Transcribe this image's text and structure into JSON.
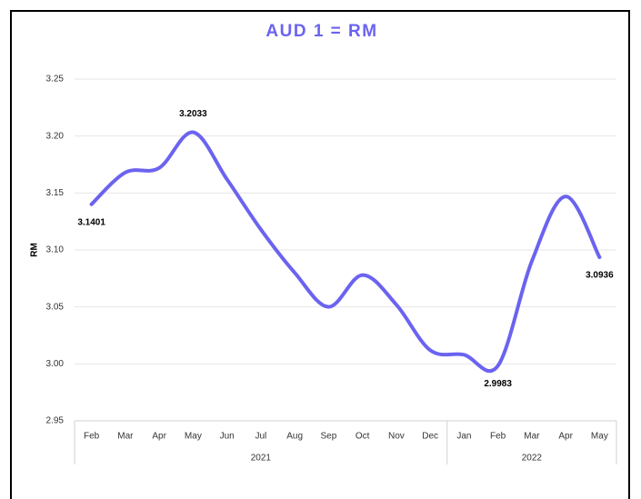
{
  "chart_data": {
    "type": "line",
    "title": "AUD 1 = RM",
    "y_label": "RM",
    "category_groups": [
      {
        "label": "2021",
        "categories": [
          "Feb",
          "Mar",
          "Apr",
          "May",
          "Jun",
          "Jul",
          "Aug",
          "Sep",
          "Oct",
          "Nov",
          "Dec"
        ]
      },
      {
        "label": "2022",
        "categories": [
          "Jan",
          "Feb",
          "Mar",
          "Apr",
          "May"
        ]
      }
    ],
    "values": [
      3.1401,
      3.168,
      3.172,
      3.2033,
      3.162,
      3.118,
      3.08,
      3.05,
      3.078,
      3.052,
      3.012,
      3.008,
      2.9983,
      3.09,
      3.147,
      3.0936
    ],
    "value_labels": [
      "3.1401",
      null,
      null,
      "3.2033",
      null,
      null,
      null,
      null,
      null,
      null,
      null,
      null,
      "2.9983",
      null,
      null,
      "3.0936"
    ],
    "color": "#6b63ef",
    "smooth": true,
    "ylim": [
      2.95,
      3.25
    ],
    "yticks": [
      2.95,
      {
        "value": 3.0,
        "label": "3.00"
      },
      3.05,
      {
        "value": 3.1,
        "label": "3.10"
      },
      3.15,
      {
        "value": 3.2,
        "label": "3.20"
      },
      3.25
    ],
    "grid": true
  }
}
